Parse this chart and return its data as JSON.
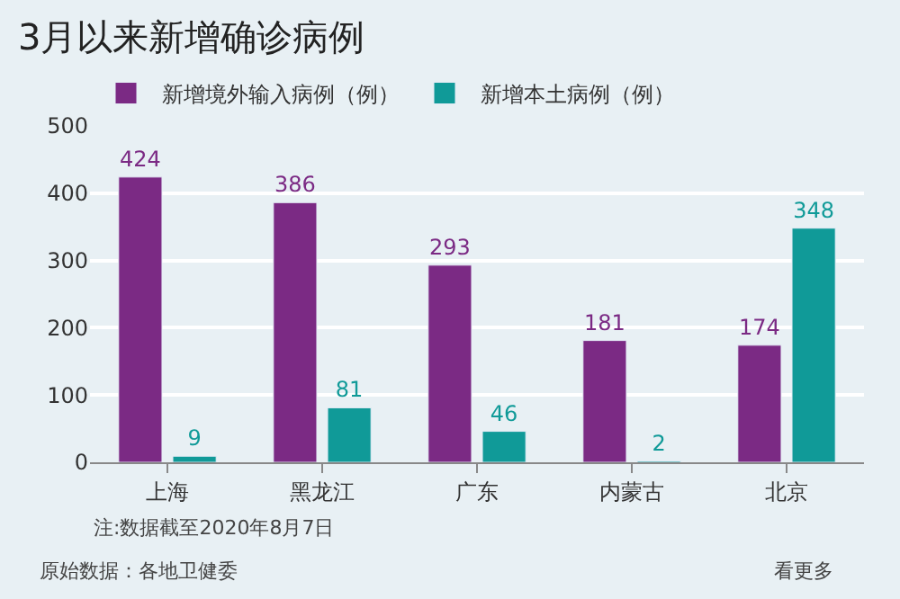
{
  "chart_data": {
    "type": "bar",
    "title": "3月以来新增确诊病例",
    "categories": [
      "上海",
      "黑龙江",
      "广东",
      "内蒙古",
      "北京"
    ],
    "series": [
      {
        "name": "新增境外输入病例（例）",
        "color": "#7b2a84",
        "values": [
          424,
          386,
          293,
          181,
          174
        ]
      },
      {
        "name": "新增本土病例（例）",
        "color": "#109a98",
        "values": [
          9,
          81,
          46,
          2,
          348
        ]
      }
    ],
    "ylim": [
      0,
      500
    ],
    "yticks": [
      0,
      100,
      200,
      300,
      400,
      500
    ],
    "grid": "y",
    "legend": "top left",
    "data_labels": true,
    "annotations": [
      "注:数据截至2020年8月7日",
      "原始数据：各地卫健委",
      "看更多"
    ]
  }
}
